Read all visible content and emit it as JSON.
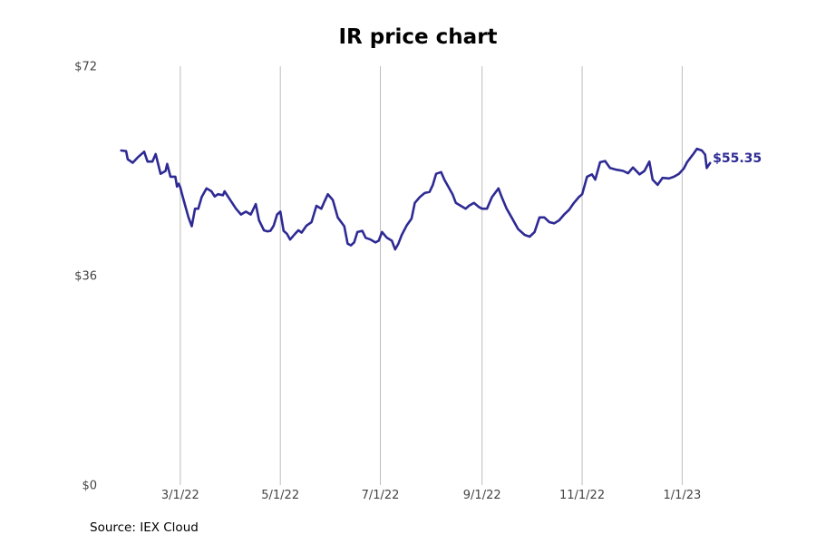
{
  "chart_data": {
    "type": "line",
    "title": "IR price chart",
    "source": "Source: IEX Cloud",
    "ylim": [
      0,
      72
    ],
    "y_ticks": [
      {
        "value": 0,
        "label": "$0"
      },
      {
        "value": 36,
        "label": "$36"
      },
      {
        "value": 72,
        "label": "$72"
      }
    ],
    "x_range": [
      "2022-01-12",
      "2023-02-14"
    ],
    "x_ticks": [
      {
        "date": "2022-03-01",
        "label": "3/1/22"
      },
      {
        "date": "2022-05-01",
        "label": "5/1/22"
      },
      {
        "date": "2022-07-01",
        "label": "7/1/22"
      },
      {
        "date": "2022-09-01",
        "label": "9/1/22"
      },
      {
        "date": "2022-11-01",
        "label": "11/1/22"
      },
      {
        "date": "2023-01-01",
        "label": "1/1/23"
      }
    ],
    "grid": "vertical",
    "line_color": "#2e2a94",
    "last_value_label": "$55.35",
    "series": [
      {
        "points": [
          [
            "2022-01-24",
            57.5
          ],
          [
            "2022-01-27",
            57.4
          ],
          [
            "2022-01-28",
            56.0
          ],
          [
            "2022-01-31",
            55.4
          ],
          [
            "2022-02-03",
            56.3
          ],
          [
            "2022-02-07",
            57.3
          ],
          [
            "2022-02-09",
            55.6
          ],
          [
            "2022-02-12",
            55.6
          ],
          [
            "2022-02-14",
            56.9
          ],
          [
            "2022-02-17",
            53.5
          ],
          [
            "2022-02-20",
            54.0
          ],
          [
            "2022-02-21",
            55.2
          ],
          [
            "2022-02-23",
            53.0
          ],
          [
            "2022-02-26",
            53.0
          ],
          [
            "2022-02-27",
            51.3
          ],
          [
            "2022-02-28",
            51.8
          ],
          [
            "2022-03-01",
            51.2
          ],
          [
            "2022-03-02",
            50.1
          ],
          [
            "2022-03-04",
            48.0
          ],
          [
            "2022-03-06",
            46.0
          ],
          [
            "2022-03-08",
            44.5
          ],
          [
            "2022-03-10",
            47.5
          ],
          [
            "2022-03-12",
            47.5
          ],
          [
            "2022-03-14",
            49.5
          ],
          [
            "2022-03-17",
            51.0
          ],
          [
            "2022-03-20",
            50.5
          ],
          [
            "2022-03-22",
            49.6
          ],
          [
            "2022-03-24",
            50.0
          ],
          [
            "2022-03-27",
            49.8
          ],
          [
            "2022-03-28",
            50.5
          ],
          [
            "2022-03-31",
            49.2
          ],
          [
            "2022-04-04",
            47.5
          ],
          [
            "2022-04-07",
            46.5
          ],
          [
            "2022-04-10",
            47.0
          ],
          [
            "2022-04-13",
            46.5
          ],
          [
            "2022-04-16",
            48.3
          ],
          [
            "2022-04-18",
            45.5
          ],
          [
            "2022-04-21",
            43.8
          ],
          [
            "2022-04-23",
            43.6
          ],
          [
            "2022-04-25",
            43.7
          ],
          [
            "2022-04-27",
            44.6
          ],
          [
            "2022-04-29",
            46.5
          ],
          [
            "2022-05-01",
            47.0
          ],
          [
            "2022-05-03",
            43.7
          ],
          [
            "2022-05-05",
            43.2
          ],
          [
            "2022-05-07",
            42.2
          ],
          [
            "2022-05-10",
            43.2
          ],
          [
            "2022-05-12",
            43.8
          ],
          [
            "2022-05-14",
            43.4
          ],
          [
            "2022-05-17",
            44.6
          ],
          [
            "2022-05-20",
            45.2
          ],
          [
            "2022-05-23",
            48.0
          ],
          [
            "2022-05-26",
            47.5
          ],
          [
            "2022-05-28",
            48.8
          ],
          [
            "2022-05-30",
            50.0
          ],
          [
            "2022-06-02",
            49.0
          ],
          [
            "2022-06-05",
            46.0
          ],
          [
            "2022-06-09",
            44.5
          ],
          [
            "2022-06-11",
            41.5
          ],
          [
            "2022-06-13",
            41.2
          ],
          [
            "2022-06-15",
            41.7
          ],
          [
            "2022-06-17",
            43.5
          ],
          [
            "2022-06-20",
            43.7
          ],
          [
            "2022-06-22",
            42.5
          ],
          [
            "2022-06-25",
            42.2
          ],
          [
            "2022-06-28",
            41.7
          ],
          [
            "2022-06-30",
            42.0
          ],
          [
            "2022-07-02",
            43.5
          ],
          [
            "2022-07-05",
            42.5
          ],
          [
            "2022-07-08",
            42.0
          ],
          [
            "2022-07-10",
            40.5
          ],
          [
            "2022-07-12",
            41.5
          ],
          [
            "2022-07-14",
            43.0
          ],
          [
            "2022-07-17",
            44.6
          ],
          [
            "2022-07-20",
            45.8
          ],
          [
            "2022-07-22",
            48.5
          ],
          [
            "2022-07-25",
            49.5
          ],
          [
            "2022-07-28",
            50.2
          ],
          [
            "2022-07-31",
            50.4
          ],
          [
            "2022-08-02",
            51.6
          ],
          [
            "2022-08-04",
            53.5
          ],
          [
            "2022-08-07",
            53.8
          ],
          [
            "2022-08-09",
            52.5
          ],
          [
            "2022-08-12",
            51.0
          ],
          [
            "2022-08-14",
            50.0
          ],
          [
            "2022-08-16",
            48.5
          ],
          [
            "2022-08-19",
            48.0
          ],
          [
            "2022-08-22",
            47.5
          ],
          [
            "2022-08-24",
            48.0
          ],
          [
            "2022-08-27",
            48.5
          ],
          [
            "2022-08-30",
            47.8
          ],
          [
            "2022-09-01",
            47.5
          ],
          [
            "2022-09-04",
            47.5
          ],
          [
            "2022-09-07",
            49.5
          ],
          [
            "2022-09-11",
            51.0
          ],
          [
            "2022-09-13",
            49.5
          ],
          [
            "2022-09-16",
            47.5
          ],
          [
            "2022-09-19",
            46.0
          ],
          [
            "2022-09-23",
            44.0
          ],
          [
            "2022-09-27",
            43.0
          ],
          [
            "2022-09-30",
            42.7
          ],
          [
            "2022-10-03",
            43.5
          ],
          [
            "2022-10-06",
            46.0
          ],
          [
            "2022-10-09",
            46.0
          ],
          [
            "2022-10-12",
            45.2
          ],
          [
            "2022-10-15",
            45.0
          ],
          [
            "2022-10-18",
            45.5
          ],
          [
            "2022-10-21",
            46.5
          ],
          [
            "2022-10-24",
            47.3
          ],
          [
            "2022-10-27",
            48.5
          ],
          [
            "2022-10-30",
            49.5
          ],
          [
            "2022-11-01",
            50.0
          ],
          [
            "2022-11-04",
            53.0
          ],
          [
            "2022-11-07",
            53.4
          ],
          [
            "2022-11-09",
            52.5
          ],
          [
            "2022-11-12",
            55.5
          ],
          [
            "2022-11-15",
            55.7
          ],
          [
            "2022-11-18",
            54.5
          ],
          [
            "2022-11-22",
            54.2
          ],
          [
            "2022-11-26",
            54.0
          ],
          [
            "2022-11-29",
            53.6
          ],
          [
            "2022-12-02",
            54.6
          ],
          [
            "2022-12-06",
            53.4
          ],
          [
            "2022-12-09",
            54.0
          ],
          [
            "2022-12-12",
            55.6
          ],
          [
            "2022-12-14",
            52.5
          ],
          [
            "2022-12-17",
            51.6
          ],
          [
            "2022-12-20",
            52.8
          ],
          [
            "2022-12-24",
            52.7
          ],
          [
            "2022-12-27",
            53.0
          ],
          [
            "2022-12-30",
            53.5
          ],
          [
            "2023-01-02",
            54.4
          ],
          [
            "2023-01-04",
            55.5
          ],
          [
            "2023-01-08",
            57.0
          ],
          [
            "2023-01-10",
            57.8
          ],
          [
            "2023-01-13",
            57.5
          ],
          [
            "2023-01-15",
            56.8
          ],
          [
            "2023-01-16",
            54.5
          ],
          [
            "2023-01-18",
            55.35
          ]
        ]
      }
    ]
  }
}
